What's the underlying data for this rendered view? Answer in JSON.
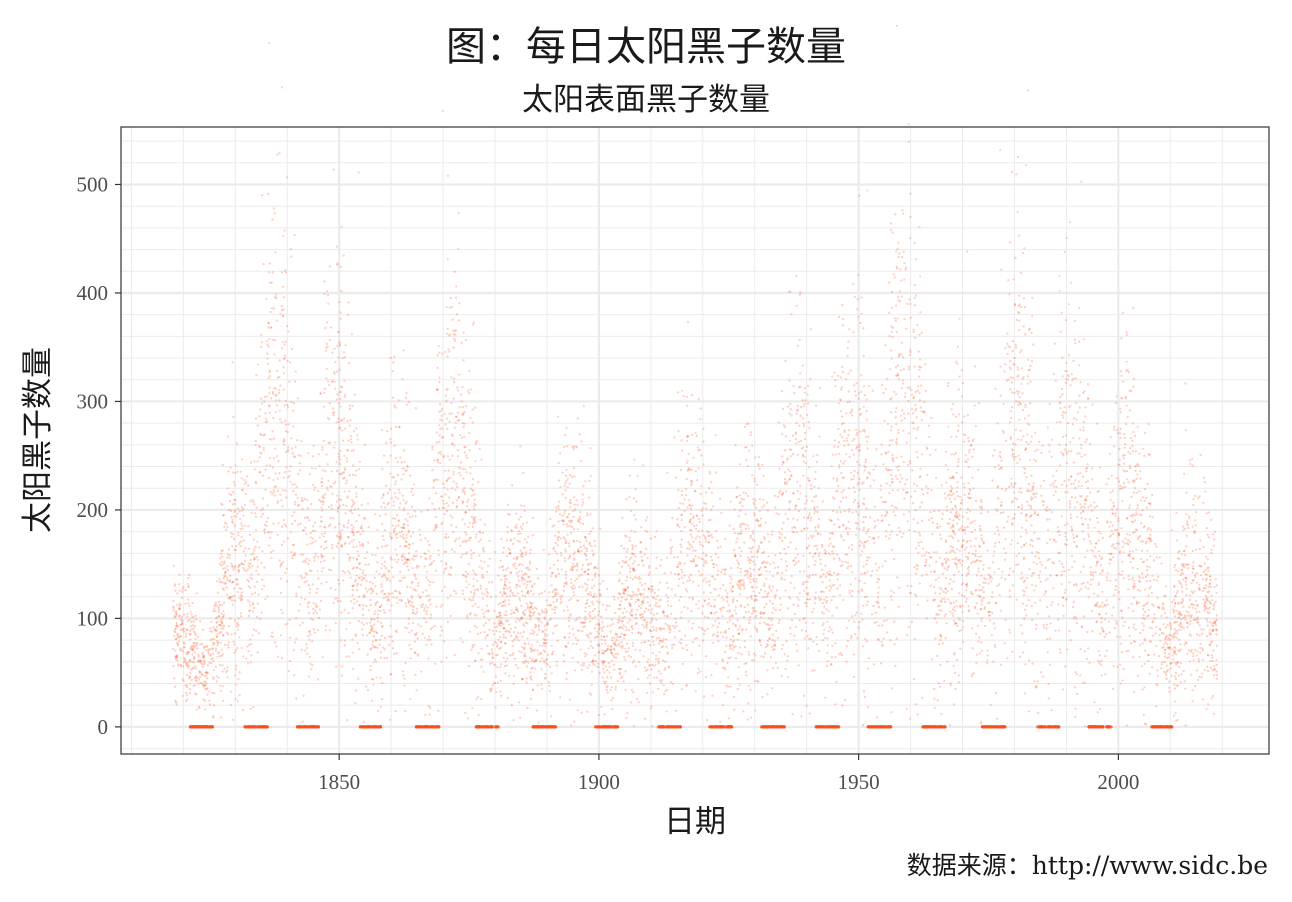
{
  "title": "图：每日太阳黑子数量",
  "subtitle": "太阳表面黑子数量",
  "caption": "数据来源：http://www.sidc.be",
  "colors": {
    "points": "#fc4e1e",
    "grid": "#ebebeb",
    "panel_border": "#333333",
    "background": "#ffffff"
  },
  "chart_data": {
    "type": "scatter",
    "xlabel": "日期",
    "ylabel": "太阳黑子数量",
    "x_ticks": [
      "1850",
      "1900",
      "1950",
      "2000"
    ],
    "y_ticks": [
      "0",
      "100",
      "200",
      "300",
      "400",
      "500"
    ],
    "xlim": [
      1808,
      2029
    ],
    "ylim": [
      -25,
      553
    ],
    "grid": true,
    "cycle_peaks": [
      {
        "year": 1818.0,
        "value": 70
      },
      {
        "year": 1830.0,
        "value": 130
      },
      {
        "year": 1837.5,
        "value": 270
      },
      {
        "year": 1848.5,
        "value": 230
      },
      {
        "year": 1860.5,
        "value": 160
      },
      {
        "year": 1871.0,
        "value": 240
      },
      {
        "year": 1883.5,
        "value": 110
      },
      {
        "year": 1894.0,
        "value": 150
      },
      {
        "year": 1906.5,
        "value": 110
      },
      {
        "year": 1917.5,
        "value": 170
      },
      {
        "year": 1928.5,
        "value": 140
      },
      {
        "year": 1937.5,
        "value": 200
      },
      {
        "year": 1948.0,
        "value": 230
      },
      {
        "year": 1958.0,
        "value": 290
      },
      {
        "year": 1969.0,
        "value": 170
      },
      {
        "year": 1979.5,
        "value": 240
      },
      {
        "year": 1990.0,
        "value": 230
      },
      {
        "year": 2001.0,
        "value": 190
      },
      {
        "year": 2014.0,
        "value": 120
      }
    ],
    "cycle_minima": [
      1823.5,
      1834.0,
      1844.0,
      1856.0,
      1867.0,
      1878.5,
      1889.5,
      1901.5,
      1913.5,
      1923.5,
      1933.5,
      1944.0,
      1954.0,
      1964.5,
      1976.0,
      1986.5,
      1996.5,
      2008.5
    ],
    "data_range": [
      1818.0,
      2019.0
    ]
  }
}
